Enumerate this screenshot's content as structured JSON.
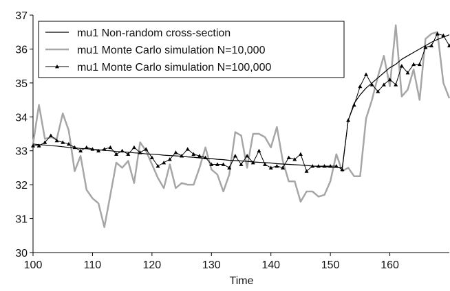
{
  "chart_data": {
    "type": "line",
    "x_label": "Time",
    "x": [
      100,
      101,
      102,
      103,
      104,
      105,
      106,
      107,
      108,
      109,
      110,
      111,
      112,
      113,
      114,
      115,
      116,
      117,
      118,
      119,
      120,
      121,
      122,
      123,
      124,
      125,
      126,
      127,
      128,
      129,
      130,
      131,
      132,
      133,
      134,
      135,
      136,
      137,
      138,
      139,
      140,
      141,
      142,
      143,
      144,
      145,
      146,
      147,
      148,
      149,
      150,
      151,
      152,
      153,
      154,
      155,
      156,
      157,
      158,
      159,
      160,
      161,
      162,
      163,
      164,
      165,
      166,
      167,
      168,
      169,
      170
    ],
    "series": [
      {
        "name": "mu1 Non-random cross-section",
        "color": "#000000",
        "marker": "none",
        "width": 1.2,
        "values": [
          33.2,
          33.18,
          33.17,
          33.15,
          33.14,
          33.12,
          33.1,
          33.09,
          33.07,
          33.06,
          33.04,
          33.03,
          33.01,
          33.0,
          32.98,
          32.97,
          32.96,
          32.94,
          32.93,
          32.91,
          32.9,
          32.89,
          32.87,
          32.86,
          32.85,
          32.84,
          32.82,
          32.81,
          32.79,
          32.78,
          32.77,
          32.75,
          32.74,
          32.72,
          32.71,
          32.7,
          32.69,
          32.67,
          32.66,
          32.65,
          32.64,
          32.62,
          32.61,
          32.6,
          32.59,
          32.58,
          32.57,
          32.55,
          32.54,
          32.53,
          32.52,
          32.51,
          32.5,
          33.9,
          34.4,
          34.65,
          34.85,
          35.0,
          35.15,
          35.3,
          35.45,
          35.55,
          35.7,
          35.8,
          35.9,
          36.0,
          36.1,
          36.2,
          36.28,
          36.35,
          36.42
        ]
      },
      {
        "name": "mu1 Monte Carlo simulation N=10,000",
        "color": "#a6a6a6",
        "marker": "none",
        "width": 2.5,
        "values": [
          33.2,
          34.35,
          33.35,
          33.4,
          33.35,
          34.1,
          33.6,
          32.4,
          32.85,
          31.85,
          31.6,
          31.45,
          30.75,
          31.7,
          32.65,
          32.5,
          32.7,
          32.05,
          33.25,
          33.0,
          32.6,
          32.2,
          31.9,
          32.6,
          31.9,
          32.05,
          32.0,
          32.0,
          32.5,
          33.1,
          32.45,
          32.3,
          31.8,
          32.3,
          33.55,
          33.45,
          32.5,
          33.5,
          33.5,
          33.4,
          33.1,
          33.7,
          32.7,
          32.1,
          32.1,
          31.5,
          31.8,
          31.8,
          31.65,
          31.7,
          32.1,
          32.9,
          32.4,
          32.5,
          32.25,
          32.25,
          33.95,
          34.5,
          35.2,
          35.8,
          34.9,
          36.7,
          34.6,
          34.8,
          35.4,
          34.5,
          36.3,
          36.45,
          36.5,
          35.0,
          34.55
        ]
      },
      {
        "name": "mu1 Monte Carlo simulation N=100,000",
        "color": "#000000",
        "marker": "triangle",
        "width": 1,
        "values": [
          33.15,
          33.15,
          33.25,
          33.45,
          33.3,
          33.25,
          33.2,
          33.1,
          33.0,
          33.1,
          33.05,
          33.0,
          33.05,
          33.1,
          32.9,
          33.0,
          32.9,
          33.1,
          32.95,
          33.05,
          32.8,
          32.55,
          32.65,
          32.75,
          32.95,
          32.85,
          33.05,
          32.9,
          32.85,
          32.8,
          32.6,
          32.6,
          32.6,
          32.5,
          32.85,
          32.6,
          32.85,
          32.65,
          33.0,
          32.6,
          32.5,
          32.55,
          32.5,
          32.8,
          32.75,
          32.9,
          32.4,
          32.55,
          32.55,
          32.55,
          32.55,
          32.55,
          32.45,
          33.9,
          34.35,
          34.9,
          35.25,
          34.95,
          34.75,
          34.95,
          35.1,
          34.95,
          35.5,
          35.3,
          35.55,
          35.55,
          36.05,
          36.1,
          36.45,
          36.4,
          36.1
        ]
      }
    ],
    "xlim": [
      100,
      170
    ],
    "xticks": [
      100,
      110,
      120,
      130,
      140,
      150,
      160
    ],
    "ylim": [
      30,
      37
    ],
    "yticks": [
      30,
      31,
      32,
      33,
      34,
      35,
      36,
      37
    ],
    "grid": false,
    "legend": "upper left"
  }
}
